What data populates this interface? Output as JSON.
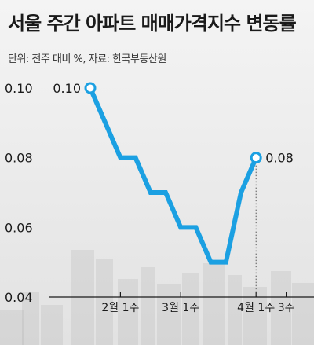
{
  "header": {
    "title": "서울 주간 아파트 매매가격지수 변동률",
    "subtitle": "단위: 전주 대비 %, 자료: 한국부동산원"
  },
  "colors": {
    "line": "#1ba0e2",
    "marker_fill": "#ffffff",
    "text": "#1a1a1a",
    "building": "#9a9a9a"
  },
  "chart_data": {
    "type": "line",
    "title": "서울 주간 아파트 매매가격지수 변동률",
    "subtitle": "단위: 전주 대비 %, 자료: 한국부동산원",
    "xlabel": "",
    "ylabel": "",
    "ylim": [
      0.04,
      0.1
    ],
    "yticks": [
      0.04,
      0.06,
      0.08,
      0.1
    ],
    "ytick_labels": [
      "0.04",
      "0.06",
      "0.08",
      "0.10"
    ],
    "xtick_labels": [
      {
        "label": "2월 1주",
        "index": 2
      },
      {
        "label": "3월 1주",
        "index": 6
      },
      {
        "label": "4월 1주",
        "index": 11
      },
      {
        "label": "3주",
        "index": 13
      }
    ],
    "series": [
      {
        "values": [
          0.1,
          0.09,
          0.08,
          0.08,
          0.07,
          0.07,
          0.06,
          0.06,
          0.05,
          0.05,
          0.07,
          0.08
        ]
      }
    ],
    "annotations": [
      {
        "index": 0,
        "text": "0.10"
      },
      {
        "index": 11,
        "text": "0.08"
      }
    ],
    "grid": false,
    "legend": "none"
  }
}
